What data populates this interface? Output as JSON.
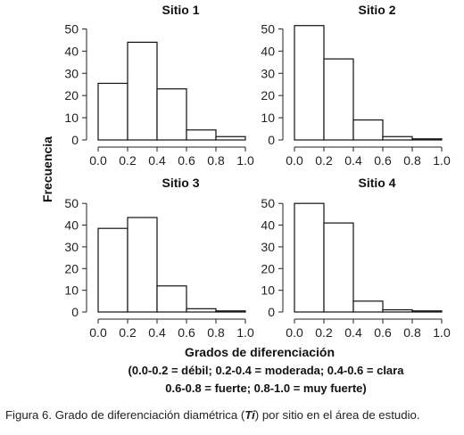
{
  "ylabel": "Frecuencia",
  "xlabel": "Grados de diferenciación",
  "legend_line1": "(0.0-0.2 = débil; 0.2-0.4 = moderada; 0.4-0.6 = clara",
  "legend_line2": "0.6-0.8 = fuerte; 0.8-1.0 = muy fuerte)",
  "caption": {
    "prefix": "Figura 6. Grado de diferenciación diamétrica (",
    "symbol": "Ti",
    "suffix": ") por sitio en el área de estudio."
  },
  "chart_data": [
    {
      "type": "bar",
      "title": "Sitio 1",
      "bin_edges": [
        0.0,
        0.2,
        0.4,
        0.6,
        0.8,
        1.0
      ],
      "values": [
        25.5,
        44,
        23,
        4.5,
        1.5
      ],
      "xticks": [
        "0.0",
        "0.2",
        "0.4",
        "0.6",
        "0.8",
        "1.0"
      ],
      "yticks": [
        "0",
        "10",
        "20",
        "30",
        "40",
        "50"
      ],
      "xlim": [
        0,
        1
      ],
      "ylim": [
        0,
        55
      ]
    },
    {
      "type": "bar",
      "title": "Sitio 2",
      "bin_edges": [
        0.0,
        0.2,
        0.4,
        0.6,
        0.8,
        1.0
      ],
      "values": [
        51.5,
        36.5,
        9,
        1.5,
        0.5
      ],
      "xticks": [
        "0.0",
        "0.2",
        "0.4",
        "0.6",
        "0.8",
        "1.0"
      ],
      "yticks": [
        "0",
        "10",
        "20",
        "30",
        "40",
        "50"
      ],
      "xlim": [
        0,
        1
      ],
      "ylim": [
        0,
        55
      ]
    },
    {
      "type": "bar",
      "title": "Sitio 3",
      "bin_edges": [
        0.0,
        0.2,
        0.4,
        0.6,
        0.8,
        1.0
      ],
      "values": [
        38.5,
        43.5,
        12,
        1.5,
        0.5
      ],
      "xticks": [
        "0.0",
        "0.2",
        "0.4",
        "0.6",
        "0.8",
        "1.0"
      ],
      "yticks": [
        "0",
        "10",
        "20",
        "30",
        "40",
        "50"
      ],
      "xlim": [
        0,
        1
      ],
      "ylim": [
        0,
        55
      ]
    },
    {
      "type": "bar",
      "title": "Sitio 4",
      "bin_edges": [
        0.0,
        0.2,
        0.4,
        0.6,
        0.8,
        1.0
      ],
      "values": [
        50,
        41,
        5,
        1,
        0.5
      ],
      "xticks": [
        "0.0",
        "0.2",
        "0.4",
        "0.6",
        "0.8",
        "1.0"
      ],
      "yticks": [
        "0",
        "10",
        "20",
        "30",
        "40",
        "50"
      ],
      "xlim": [
        0,
        1
      ],
      "ylim": [
        0,
        55
      ]
    }
  ]
}
